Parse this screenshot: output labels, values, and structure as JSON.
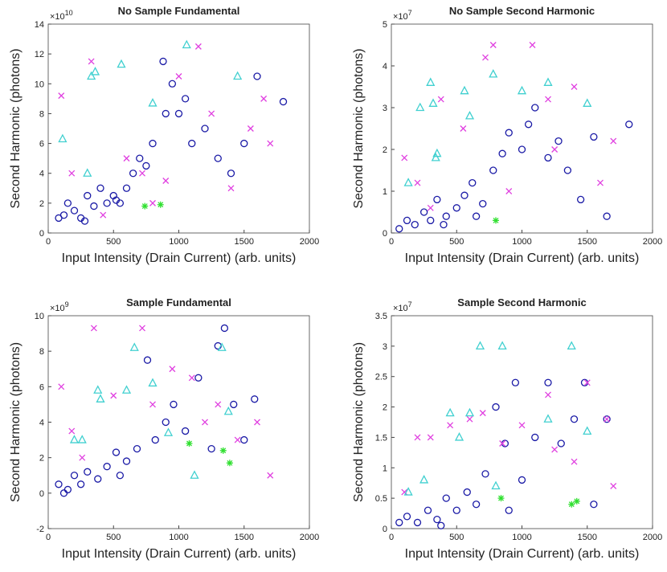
{
  "chart_data": [
    {
      "type": "scatter",
      "title": "No Sample Fundamental",
      "x_label": "Input Intensity (Drain Current) (arb. units)",
      "y_label": "Second Harmonic (photons)",
      "y_scale_base": "×10",
      "y_scale_power": "10",
      "xlim": [
        0,
        2000
      ],
      "xticks": [
        0,
        500,
        1000,
        1500,
        2000
      ],
      "ylim": [
        0,
        14
      ],
      "yticks": [
        0,
        2,
        4,
        6,
        8,
        10,
        12,
        14
      ],
      "series": [
        {
          "marker": "o",
          "color": "#1a1aa6",
          "x": [
            80,
            150,
            200,
            250,
            300,
            350,
            400,
            450,
            500,
            550,
            600,
            650,
            700,
            750,
            800,
            900,
            950,
            1000,
            1050,
            1100,
            1200,
            1300,
            1400,
            1500,
            1600,
            1800,
            120,
            280,
            520,
            880
          ],
          "values": [
            1,
            2,
            1.5,
            1,
            2.5,
            1.8,
            3,
            2,
            2.5,
            2,
            3,
            4,
            5,
            4.5,
            6,
            8,
            10,
            8,
            9,
            6,
            7,
            5,
            4,
            6,
            10.5,
            8.8,
            1.2,
            0.8,
            2.2,
            11.5
          ]
        },
        {
          "marker": "x",
          "color": "#e040e0",
          "x": [
            100,
            180,
            330,
            420,
            600,
            720,
            900,
            1000,
            1150,
            1250,
            1400,
            1550,
            1650,
            1700,
            800
          ],
          "values": [
            9.2,
            4,
            11.5,
            1.2,
            5,
            4,
            3.5,
            10.5,
            12.5,
            8,
            3,
            7,
            9,
            6,
            2
          ]
        },
        {
          "marker": "^",
          "color": "#40d0d0",
          "x": [
            110,
            330,
            360,
            560,
            800,
            1060,
            1450,
            300
          ],
          "values": [
            6.3,
            10.5,
            10.8,
            11.3,
            8.7,
            12.6,
            10.5,
            4
          ]
        },
        {
          "marker": "*",
          "color": "#30e030",
          "x": [
            740,
            860
          ],
          "values": [
            1.8,
            1.9
          ]
        }
      ]
    },
    {
      "type": "scatter",
      "title": "No Sample Second Harmonic",
      "x_label": "Input Intensity (Drain Current) (arb. units)",
      "y_label": "Second Harmonic (photons)",
      "y_scale_base": "×10",
      "y_scale_power": "7",
      "xlim": [
        0,
        2000
      ],
      "xticks": [
        0,
        500,
        1000,
        1500,
        2000
      ],
      "ylim": [
        0,
        5
      ],
      "yticks": [
        0,
        1,
        2,
        3,
        4,
        5
      ],
      "series": [
        {
          "marker": "o",
          "color": "#1a1aa6",
          "x": [
            60,
            120,
            180,
            250,
            300,
            350,
            420,
            500,
            560,
            620,
            700,
            780,
            850,
            900,
            1000,
            1050,
            1100,
            1200,
            1280,
            1350,
            1450,
            1550,
            1650,
            1820,
            400,
            650
          ],
          "values": [
            0.1,
            0.3,
            0.2,
            0.5,
            0.3,
            0.8,
            0.4,
            0.6,
            0.9,
            1.2,
            0.7,
            1.5,
            1.9,
            2.4,
            2,
            2.6,
            3,
            1.8,
            2.2,
            1.5,
            0.8,
            2.3,
            0.4,
            2.6,
            0.2,
            0.4
          ]
        },
        {
          "marker": "x",
          "color": "#e040e0",
          "x": [
            100,
            200,
            380,
            550,
            720,
            780,
            900,
            1080,
            1200,
            1250,
            1400,
            1600,
            1700,
            300
          ],
          "values": [
            1.8,
            1.2,
            3.2,
            2.5,
            4.2,
            4.5,
            1,
            4.5,
            3.2,
            2,
            3.5,
            1.2,
            2.2,
            0.6
          ]
        },
        {
          "marker": "^",
          "color": "#40d0d0",
          "x": [
            130,
            220,
            300,
            320,
            350,
            560,
            600,
            780,
            1000,
            1200,
            1500,
            340
          ],
          "values": [
            1.2,
            3,
            3.6,
            3.1,
            1.9,
            3.4,
            2.8,
            3.8,
            3.4,
            3.6,
            3.1,
            1.8
          ]
        },
        {
          "marker": "*",
          "color": "#30e030",
          "x": [
            800
          ],
          "values": [
            0.3
          ]
        }
      ]
    },
    {
      "type": "scatter",
      "title": "Sample Fundamental",
      "x_label": "Input Intensity (Drain Current) (arb. units)",
      "y_label": "Second Harmonic (photons)",
      "y_scale_base": "×10",
      "y_scale_power": "9",
      "xlim": [
        0,
        2000
      ],
      "xticks": [
        0,
        500,
        1000,
        1500,
        2000
      ],
      "ylim": [
        -2,
        10
      ],
      "yticks": [
        -2,
        0,
        2,
        4,
        6,
        8,
        10
      ],
      "series": [
        {
          "marker": "o",
          "color": "#1a1aa6",
          "x": [
            80,
            150,
            200,
            250,
            300,
            380,
            450,
            520,
            600,
            680,
            760,
            820,
            900,
            960,
            1050,
            1150,
            1250,
            1300,
            1350,
            1420,
            1500,
            1580,
            120,
            550
          ],
          "values": [
            0.5,
            0.2,
            1,
            0.5,
            1.2,
            0.8,
            1.5,
            2.3,
            1.8,
            2.5,
            7.5,
            3,
            4,
            5,
            3.5,
            6.5,
            2.5,
            8.3,
            9.3,
            5,
            3,
            5.3,
            0,
            1
          ]
        },
        {
          "marker": "x",
          "color": "#e040e0",
          "x": [
            100,
            180,
            350,
            500,
            720,
            800,
            950,
            1100,
            1200,
            1300,
            1450,
            1600,
            1700,
            260
          ],
          "values": [
            6,
            3.5,
            9.3,
            5.5,
            9.3,
            5,
            7,
            6.5,
            4,
            5,
            3,
            4,
            1,
            2
          ]
        },
        {
          "marker": "^",
          "color": "#40d0d0",
          "x": [
            200,
            260,
            380,
            400,
            600,
            660,
            800,
            920,
            1330,
            1380,
            1120
          ],
          "values": [
            3,
            3,
            5.8,
            5.3,
            5.8,
            8.2,
            6.2,
            3.4,
            8.2,
            4.6,
            1
          ]
        },
        {
          "marker": "*",
          "color": "#30e030",
          "x": [
            1080,
            1390,
            1340
          ],
          "values": [
            2.8,
            1.7,
            2.4
          ]
        }
      ]
    },
    {
      "type": "scatter",
      "title": "Sample Second Harmonic",
      "x_label": "Input Intensity (Drain Current) (arb. units)",
      "y_label": "Second Harmonic (photons)",
      "y_scale_base": "×10",
      "y_scale_power": "7",
      "xlim": [
        0,
        2000
      ],
      "xticks": [
        0,
        500,
        1000,
        1500,
        2000
      ],
      "ylim": [
        0,
        3.5
      ],
      "yticks": [
        0,
        0.5,
        1,
        1.5,
        2,
        2.5,
        3,
        3.5
      ],
      "series": [
        {
          "marker": "o",
          "color": "#1a1aa6",
          "x": [
            60,
            120,
            200,
            280,
            350,
            420,
            500,
            580,
            650,
            720,
            800,
            870,
            950,
            1000,
            1100,
            1200,
            1300,
            1400,
            1480,
            1550,
            1650,
            900,
            380
          ],
          "values": [
            0.1,
            0.2,
            0.1,
            0.3,
            0.15,
            0.5,
            0.3,
            0.6,
            0.4,
            0.9,
            2,
            1.4,
            2.4,
            0.8,
            1.5,
            2.4,
            1.4,
            1.8,
            2.4,
            0.4,
            1.8,
            0.3,
            0.05
          ]
        },
        {
          "marker": "x",
          "color": "#e040e0",
          "x": [
            100,
            200,
            300,
            450,
            600,
            700,
            850,
            1000,
            1200,
            1250,
            1400,
            1500,
            1650,
            1700
          ],
          "values": [
            0.6,
            1.5,
            1.5,
            1.7,
            1.8,
            1.9,
            1.4,
            1.7,
            2.2,
            1.3,
            1.1,
            2.4,
            1.8,
            0.7
          ]
        },
        {
          "marker": "^",
          "color": "#40d0d0",
          "x": [
            130,
            250,
            450,
            520,
            600,
            680,
            800,
            850,
            1200,
            1380,
            1500
          ],
          "values": [
            0.6,
            0.8,
            1.9,
            1.5,
            1.9,
            3,
            0.7,
            3,
            1.8,
            3,
            1.6
          ]
        },
        {
          "marker": "*",
          "color": "#30e030",
          "x": [
            840,
            1380,
            1420
          ],
          "values": [
            0.5,
            0.4,
            0.45
          ]
        }
      ]
    }
  ]
}
